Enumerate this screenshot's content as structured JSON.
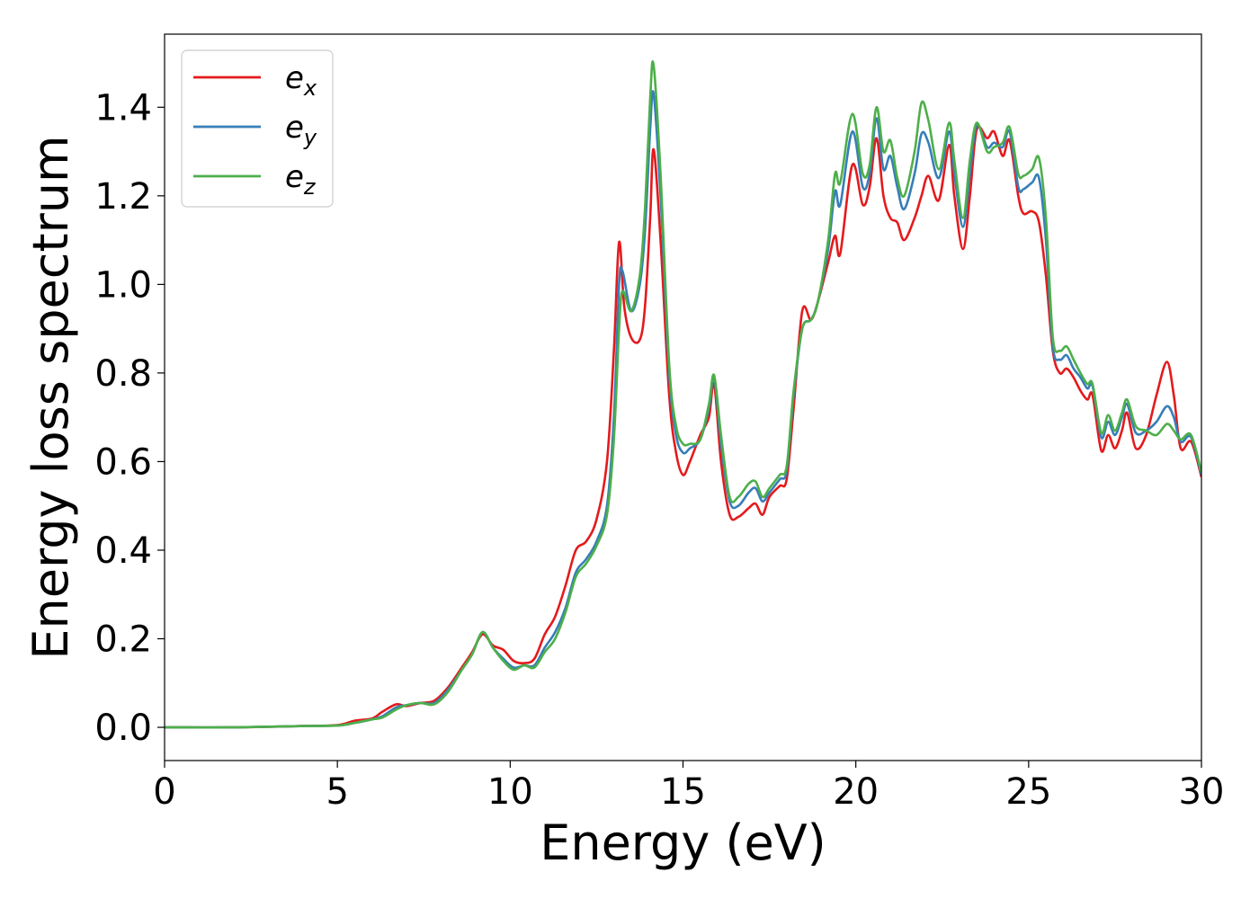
{
  "chart_data": {
    "type": "line",
    "xlabel": "Energy (eV)",
    "ylabel": "Energy loss spectrum",
    "xlim": [
      0,
      30
    ],
    "ylim": [
      -0.075,
      1.565
    ],
    "xticks": [
      0,
      5,
      10,
      15,
      20,
      25,
      30
    ],
    "xtick_labels": [
      "0",
      "5",
      "10",
      "15",
      "20",
      "25",
      "30"
    ],
    "yticks": [
      0.0,
      0.2,
      0.4,
      0.6,
      0.8,
      1.0,
      1.2,
      1.4
    ],
    "ytick_labels": [
      "0.0",
      "0.2",
      "0.4",
      "0.6",
      "0.8",
      "1.0",
      "1.2",
      "1.4"
    ],
    "grid": false,
    "legend_position": "top-left",
    "series": [
      {
        "name": "e",
        "subscript": "x",
        "color": "#e41a1c",
        "points": [
          [
            0,
            0
          ],
          [
            2,
            0
          ],
          [
            4,
            0.003
          ],
          [
            5,
            0.005
          ],
          [
            5.5,
            0.015
          ],
          [
            6,
            0.02
          ],
          [
            6.3,
            0.035
          ],
          [
            6.7,
            0.052
          ],
          [
            7,
            0.048
          ],
          [
            7.4,
            0.055
          ],
          [
            7.8,
            0.06
          ],
          [
            8.2,
            0.09
          ],
          [
            8.6,
            0.135
          ],
          [
            8.9,
            0.17
          ],
          [
            9.2,
            0.21
          ],
          [
            9.5,
            0.185
          ],
          [
            9.8,
            0.175
          ],
          [
            10.1,
            0.15
          ],
          [
            10.4,
            0.145
          ],
          [
            10.7,
            0.155
          ],
          [
            11,
            0.21
          ],
          [
            11.3,
            0.25
          ],
          [
            11.6,
            0.32
          ],
          [
            11.9,
            0.4
          ],
          [
            12.2,
            0.42
          ],
          [
            12.5,
            0.47
          ],
          [
            12.8,
            0.6
          ],
          [
            13.0,
            0.85
          ],
          [
            13.15,
            1.095
          ],
          [
            13.3,
            0.95
          ],
          [
            13.5,
            0.88
          ],
          [
            13.75,
            0.875
          ],
          [
            13.9,
            0.95
          ],
          [
            14.05,
            1.15
          ],
          [
            14.15,
            1.305
          ],
          [
            14.35,
            1.1
          ],
          [
            14.6,
            0.75
          ],
          [
            14.8,
            0.62
          ],
          [
            15.0,
            0.57
          ],
          [
            15.2,
            0.6
          ],
          [
            15.5,
            0.66
          ],
          [
            15.75,
            0.7
          ],
          [
            15.9,
            0.775
          ],
          [
            16.1,
            0.6
          ],
          [
            16.35,
            0.48
          ],
          [
            16.6,
            0.475
          ],
          [
            16.9,
            0.495
          ],
          [
            17.1,
            0.505
          ],
          [
            17.3,
            0.48
          ],
          [
            17.5,
            0.52
          ],
          [
            17.8,
            0.545
          ],
          [
            18.0,
            0.56
          ],
          [
            18.2,
            0.72
          ],
          [
            18.45,
            0.94
          ],
          [
            18.7,
            0.92
          ],
          [
            18.9,
            0.96
          ],
          [
            19.2,
            1.05
          ],
          [
            19.4,
            1.11
          ],
          [
            19.55,
            1.07
          ],
          [
            19.9,
            1.27
          ],
          [
            20.2,
            1.18
          ],
          [
            20.4,
            1.22
          ],
          [
            20.6,
            1.33
          ],
          [
            20.8,
            1.2
          ],
          [
            21.0,
            1.15
          ],
          [
            21.2,
            1.14
          ],
          [
            21.4,
            1.1
          ],
          [
            21.7,
            1.15
          ],
          [
            21.9,
            1.2
          ],
          [
            22.1,
            1.245
          ],
          [
            22.4,
            1.19
          ],
          [
            22.7,
            1.315
          ],
          [
            22.85,
            1.2
          ],
          [
            23.1,
            1.08
          ],
          [
            23.3,
            1.2
          ],
          [
            23.5,
            1.35
          ],
          [
            23.8,
            1.33
          ],
          [
            24.0,
            1.345
          ],
          [
            24.25,
            1.29
          ],
          [
            24.45,
            1.325
          ],
          [
            24.7,
            1.2
          ],
          [
            24.85,
            1.16
          ],
          [
            25.1,
            1.165
          ],
          [
            25.3,
            1.14
          ],
          [
            25.5,
            1.02
          ],
          [
            25.7,
            0.85
          ],
          [
            25.9,
            0.8
          ],
          [
            26.1,
            0.81
          ],
          [
            26.3,
            0.79
          ],
          [
            26.5,
            0.76
          ],
          [
            26.7,
            0.74
          ],
          [
            26.85,
            0.75
          ],
          [
            27.1,
            0.625
          ],
          [
            27.3,
            0.66
          ],
          [
            27.5,
            0.63
          ],
          [
            27.7,
            0.67
          ],
          [
            27.85,
            0.71
          ],
          [
            28.1,
            0.63
          ],
          [
            28.4,
            0.66
          ],
          [
            28.7,
            0.75
          ],
          [
            29.0,
            0.825
          ],
          [
            29.2,
            0.75
          ],
          [
            29.4,
            0.63
          ],
          [
            29.7,
            0.645
          ],
          [
            30,
            0.565
          ]
        ]
      },
      {
        "name": "e",
        "subscript": "y",
        "color": "#377eb8",
        "points": [
          [
            0,
            0
          ],
          [
            2,
            0
          ],
          [
            4,
            0.003
          ],
          [
            5,
            0.004
          ],
          [
            5.5,
            0.01
          ],
          [
            6,
            0.018
          ],
          [
            6.3,
            0.025
          ],
          [
            6.7,
            0.045
          ],
          [
            7,
            0.05
          ],
          [
            7.4,
            0.055
          ],
          [
            7.8,
            0.055
          ],
          [
            8.2,
            0.085
          ],
          [
            8.6,
            0.13
          ],
          [
            8.9,
            0.165
          ],
          [
            9.2,
            0.215
          ],
          [
            9.5,
            0.18
          ],
          [
            9.8,
            0.155
          ],
          [
            10.1,
            0.135
          ],
          [
            10.4,
            0.14
          ],
          [
            10.7,
            0.14
          ],
          [
            11,
            0.18
          ],
          [
            11.3,
            0.215
          ],
          [
            11.6,
            0.27
          ],
          [
            11.9,
            0.35
          ],
          [
            12.2,
            0.38
          ],
          [
            12.5,
            0.42
          ],
          [
            12.8,
            0.5
          ],
          [
            13.0,
            0.7
          ],
          [
            13.15,
            1.0
          ],
          [
            13.25,
            1.03
          ],
          [
            13.5,
            0.94
          ],
          [
            13.75,
            1.0
          ],
          [
            13.9,
            1.12
          ],
          [
            14.05,
            1.35
          ],
          [
            14.15,
            1.43
          ],
          [
            14.35,
            1.2
          ],
          [
            14.6,
            0.8
          ],
          [
            14.8,
            0.66
          ],
          [
            15.0,
            0.62
          ],
          [
            15.2,
            0.63
          ],
          [
            15.5,
            0.65
          ],
          [
            15.75,
            0.72
          ],
          [
            15.9,
            0.79
          ],
          [
            16.1,
            0.64
          ],
          [
            16.35,
            0.51
          ],
          [
            16.6,
            0.5
          ],
          [
            16.9,
            0.53
          ],
          [
            17.1,
            0.54
          ],
          [
            17.3,
            0.51
          ],
          [
            17.5,
            0.53
          ],
          [
            17.8,
            0.56
          ],
          [
            18.0,
            0.58
          ],
          [
            18.2,
            0.75
          ],
          [
            18.45,
            0.9
          ],
          [
            18.7,
            0.92
          ],
          [
            18.9,
            0.96
          ],
          [
            19.2,
            1.08
          ],
          [
            19.4,
            1.21
          ],
          [
            19.55,
            1.18
          ],
          [
            19.9,
            1.345
          ],
          [
            20.2,
            1.22
          ],
          [
            20.4,
            1.25
          ],
          [
            20.6,
            1.375
          ],
          [
            20.8,
            1.26
          ],
          [
            21.0,
            1.29
          ],
          [
            21.2,
            1.22
          ],
          [
            21.4,
            1.17
          ],
          [
            21.7,
            1.25
          ],
          [
            21.9,
            1.34
          ],
          [
            22.1,
            1.32
          ],
          [
            22.4,
            1.24
          ],
          [
            22.7,
            1.345
          ],
          [
            22.85,
            1.25
          ],
          [
            23.1,
            1.13
          ],
          [
            23.3,
            1.25
          ],
          [
            23.5,
            1.36
          ],
          [
            23.8,
            1.31
          ],
          [
            24.0,
            1.32
          ],
          [
            24.25,
            1.31
          ],
          [
            24.45,
            1.345
          ],
          [
            24.7,
            1.22
          ],
          [
            24.85,
            1.215
          ],
          [
            25.1,
            1.23
          ],
          [
            25.3,
            1.24
          ],
          [
            25.5,
            1.1
          ],
          [
            25.7,
            0.86
          ],
          [
            25.9,
            0.83
          ],
          [
            26.1,
            0.84
          ],
          [
            26.3,
            0.81
          ],
          [
            26.5,
            0.79
          ],
          [
            26.7,
            0.765
          ],
          [
            26.85,
            0.77
          ],
          [
            27.1,
            0.655
          ],
          [
            27.3,
            0.69
          ],
          [
            27.5,
            0.66
          ],
          [
            27.7,
            0.7
          ],
          [
            27.85,
            0.73
          ],
          [
            28.1,
            0.665
          ],
          [
            28.4,
            0.67
          ],
          [
            28.7,
            0.69
          ],
          [
            29.0,
            0.725
          ],
          [
            29.2,
            0.7
          ],
          [
            29.4,
            0.645
          ],
          [
            29.7,
            0.655
          ],
          [
            30,
            0.57
          ]
        ]
      },
      {
        "name": "e",
        "subscript": "z",
        "color": "#4daf4a",
        "points": [
          [
            0,
            0
          ],
          [
            2,
            0
          ],
          [
            4,
            0.003
          ],
          [
            5,
            0.004
          ],
          [
            5.5,
            0.01
          ],
          [
            6,
            0.018
          ],
          [
            6.3,
            0.022
          ],
          [
            6.7,
            0.04
          ],
          [
            7,
            0.05
          ],
          [
            7.4,
            0.055
          ],
          [
            7.8,
            0.052
          ],
          [
            8.2,
            0.08
          ],
          [
            8.6,
            0.13
          ],
          [
            8.9,
            0.165
          ],
          [
            9.2,
            0.215
          ],
          [
            9.5,
            0.18
          ],
          [
            9.8,
            0.15
          ],
          [
            10.1,
            0.13
          ],
          [
            10.4,
            0.14
          ],
          [
            10.7,
            0.135
          ],
          [
            11,
            0.17
          ],
          [
            11.3,
            0.2
          ],
          [
            11.6,
            0.26
          ],
          [
            11.9,
            0.34
          ],
          [
            12.2,
            0.37
          ],
          [
            12.5,
            0.41
          ],
          [
            12.8,
            0.48
          ],
          [
            13.0,
            0.65
          ],
          [
            13.15,
            0.9
          ],
          [
            13.25,
            0.985
          ],
          [
            13.5,
            0.94
          ],
          [
            13.75,
            1.02
          ],
          [
            13.9,
            1.17
          ],
          [
            14.05,
            1.42
          ],
          [
            14.15,
            1.495
          ],
          [
            14.35,
            1.25
          ],
          [
            14.6,
            0.82
          ],
          [
            14.8,
            0.68
          ],
          [
            15.0,
            0.64
          ],
          [
            15.2,
            0.64
          ],
          [
            15.5,
            0.65
          ],
          [
            15.75,
            0.73
          ],
          [
            15.9,
            0.795
          ],
          [
            16.1,
            0.66
          ],
          [
            16.35,
            0.52
          ],
          [
            16.6,
            0.52
          ],
          [
            16.9,
            0.55
          ],
          [
            17.1,
            0.555
          ],
          [
            17.3,
            0.52
          ],
          [
            17.5,
            0.54
          ],
          [
            17.8,
            0.57
          ],
          [
            18.0,
            0.59
          ],
          [
            18.2,
            0.76
          ],
          [
            18.45,
            0.9
          ],
          [
            18.7,
            0.92
          ],
          [
            18.9,
            0.96
          ],
          [
            19.2,
            1.1
          ],
          [
            19.4,
            1.25
          ],
          [
            19.55,
            1.23
          ],
          [
            19.9,
            1.385
          ],
          [
            20.2,
            1.25
          ],
          [
            20.4,
            1.27
          ],
          [
            20.6,
            1.4
          ],
          [
            20.8,
            1.3
          ],
          [
            21.0,
            1.325
          ],
          [
            21.2,
            1.24
          ],
          [
            21.4,
            1.2
          ],
          [
            21.7,
            1.3
          ],
          [
            21.9,
            1.41
          ],
          [
            22.1,
            1.37
          ],
          [
            22.4,
            1.26
          ],
          [
            22.7,
            1.365
          ],
          [
            22.85,
            1.28
          ],
          [
            23.1,
            1.15
          ],
          [
            23.3,
            1.28
          ],
          [
            23.5,
            1.365
          ],
          [
            23.8,
            1.3
          ],
          [
            24.0,
            1.31
          ],
          [
            24.25,
            1.32
          ],
          [
            24.45,
            1.355
          ],
          [
            24.7,
            1.25
          ],
          [
            24.85,
            1.245
          ],
          [
            25.1,
            1.26
          ],
          [
            25.3,
            1.285
          ],
          [
            25.5,
            1.15
          ],
          [
            25.7,
            0.88
          ],
          [
            25.9,
            0.85
          ],
          [
            26.1,
            0.86
          ],
          [
            26.3,
            0.83
          ],
          [
            26.5,
            0.8
          ],
          [
            26.7,
            0.775
          ],
          [
            26.85,
            0.775
          ],
          [
            27.1,
            0.665
          ],
          [
            27.3,
            0.705
          ],
          [
            27.5,
            0.67
          ],
          [
            27.7,
            0.71
          ],
          [
            27.85,
            0.74
          ],
          [
            28.1,
            0.68
          ],
          [
            28.4,
            0.67
          ],
          [
            28.7,
            0.66
          ],
          [
            29.0,
            0.685
          ],
          [
            29.2,
            0.67
          ],
          [
            29.4,
            0.65
          ],
          [
            29.7,
            0.66
          ],
          [
            30,
            0.575
          ]
        ]
      }
    ]
  }
}
